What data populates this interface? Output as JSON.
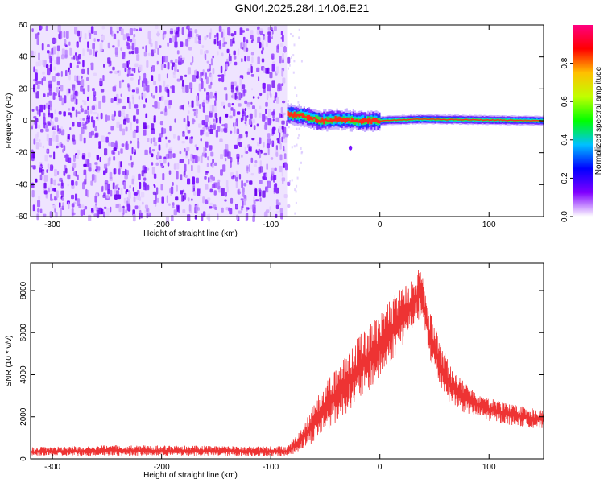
{
  "title": "GN04.2025.284.14.06.E21",
  "chart_data": [
    {
      "type": "heatmap",
      "xlabel": "Height of straight line (km)",
      "ylabel": "Frequency (Hz)",
      "xlim": [
        -320,
        150
      ],
      "ylim": [
        -60,
        60
      ],
      "xticks": [
        -300,
        -200,
        -100,
        0,
        100
      ],
      "yticks": [
        -60,
        -40,
        -20,
        0,
        20,
        40,
        60
      ],
      "noise_region_x": [
        -320,
        -85
      ],
      "signal_band": {
        "x_start": -85,
        "x_end": 150,
        "center_hz": [
          {
            "x": -85,
            "y": 4
          },
          {
            "x": -70,
            "y": 3
          },
          {
            "x": -55,
            "y": 0
          },
          {
            "x": -40,
            "y": 1
          },
          {
            "x": -20,
            "y": 0
          },
          {
            "x": 0,
            "y": 0
          },
          {
            "x": 35,
            "y": 1
          },
          {
            "x": 150,
            "y": 0
          }
        ]
      },
      "colorbar": {
        "label": "Normalized spectral amplitude",
        "range": [
          0.0,
          1.0
        ],
        "ticks": [
          "0.0",
          "0.2",
          "0.4",
          "0.6",
          "0.8"
        ],
        "tick_values": [
          0.0,
          0.2,
          0.4,
          0.6,
          0.8
        ],
        "colormap": [
          "#ffffff",
          "#8000ff",
          "#0000ff",
          "#00c0ff",
          "#00ff00",
          "#c0ff00",
          "#ffc000",
          "#ff0000",
          "#ff0080"
        ]
      }
    },
    {
      "type": "line",
      "xlabel": "Height of straight line (km)",
      "ylabel": "SNR (10 * v/v)",
      "xlim": [
        -320,
        150
      ],
      "ylim": [
        0,
        9300
      ],
      "xticks": [
        -300,
        -200,
        -100,
        0,
        100
      ],
      "yticks": [
        0,
        2000,
        4000,
        6000,
        8000
      ],
      "color": "#ee3333",
      "envelope": {
        "x": [
          -320,
          -250,
          -150,
          -100,
          -85,
          -80,
          -70,
          -60,
          -50,
          -40,
          -30,
          -20,
          -10,
          0,
          10,
          20,
          30,
          38,
          45,
          55,
          65,
          80,
          100,
          120,
          150
        ],
        "upper": [
          550,
          650,
          620,
          600,
          600,
          900,
          1600,
          2700,
          3600,
          4300,
          5000,
          5800,
          6400,
          6900,
          7600,
          8200,
          8800,
          9100,
          7200,
          5600,
          4400,
          3500,
          2900,
          2600,
          2300
        ],
        "lower": [
          100,
          150,
          130,
          120,
          120,
          200,
          500,
          800,
          1300,
          1700,
          2200,
          2700,
          3200,
          3800,
          4600,
          5300,
          6100,
          6700,
          4800,
          3400,
          2600,
          2100,
          1800,
          1600,
          1400
        ]
      }
    }
  ]
}
